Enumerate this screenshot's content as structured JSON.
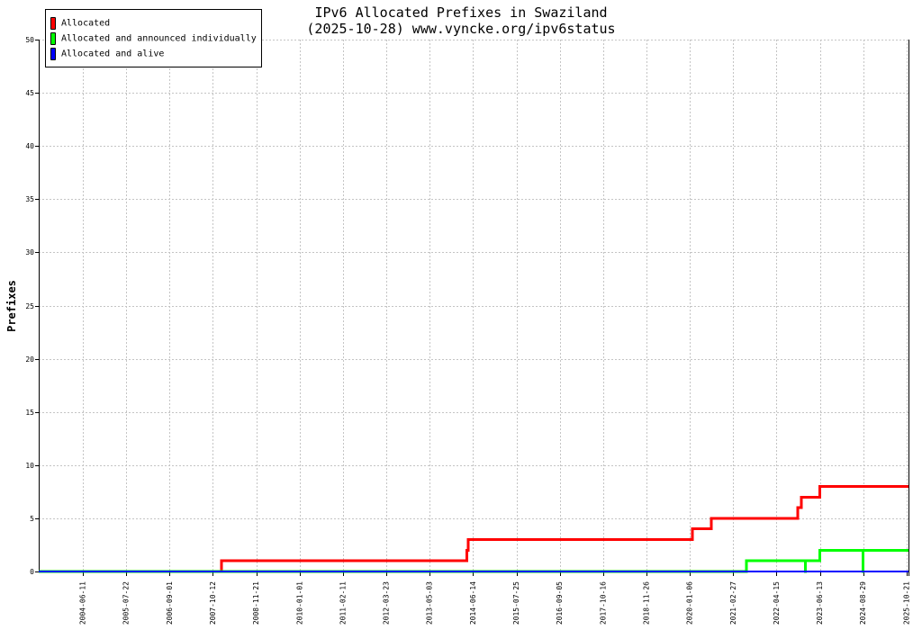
{
  "chart_data": {
    "type": "line",
    "step": true,
    "title": "IPv6 Allocated Prefixes in Swaziland",
    "subtitle": "(2025-10-28) www.vyncke.org/ipv6status",
    "ylabel": "Prefixes",
    "xlim": [
      "2003-04-25",
      "2025-10-28"
    ],
    "ylim": [
      0,
      50
    ],
    "x_ticks": [
      "2004-06-11",
      "2005-07-22",
      "2006-09-01",
      "2007-10-12",
      "2008-11-21",
      "2010-01-01",
      "2011-02-11",
      "2012-03-23",
      "2013-05-03",
      "2014-06-14",
      "2015-07-25",
      "2016-09-05",
      "2017-10-16",
      "2018-11-26",
      "2020-01-06",
      "2021-02-27",
      "2022-04-15",
      "2023-06-13",
      "2024-08-29",
      "2025-10-21"
    ],
    "y_ticks": [
      0,
      5,
      10,
      15,
      20,
      25,
      30,
      35,
      40,
      45,
      50
    ],
    "grid": true,
    "legend_position": "top-left",
    "series": [
      {
        "name": "Allocated",
        "color": "#ff0000",
        "points": [
          {
            "date": "2003-04-25",
            "value": 0
          },
          {
            "date": "2007-12-31",
            "value": 1
          },
          {
            "date": "2014-04-17",
            "value": 2
          },
          {
            "date": "2014-04-30",
            "value": 3
          },
          {
            "date": "2020-01-31",
            "value": 4
          },
          {
            "date": "2020-07-31",
            "value": 5
          },
          {
            "date": "2022-11-09",
            "value": 6
          },
          {
            "date": "2022-12-14",
            "value": 7
          },
          {
            "date": "2023-06-12",
            "value": 8
          },
          {
            "date": "2025-10-28",
            "value": 8
          }
        ]
      },
      {
        "name": "Allocated and announced individually",
        "color": "#00ff00",
        "points": [
          {
            "date": "2003-04-25",
            "value": 0
          },
          {
            "date": "2021-07-03",
            "value": 1
          },
          {
            "date": "2023-01-23",
            "value": 0
          },
          {
            "date": "2023-01-24",
            "value": 1
          },
          {
            "date": "2023-06-12",
            "value": 2
          },
          {
            "date": "2024-08-28",
            "value": 0
          },
          {
            "date": "2024-08-29",
            "value": 2
          },
          {
            "date": "2025-10-28",
            "value": 2
          }
        ]
      },
      {
        "name": "Allocated and alive",
        "color": "#0000ff",
        "points": [
          {
            "date": "2003-04-25",
            "value": 0
          },
          {
            "date": "2025-10-28",
            "value": 0
          }
        ]
      }
    ]
  }
}
